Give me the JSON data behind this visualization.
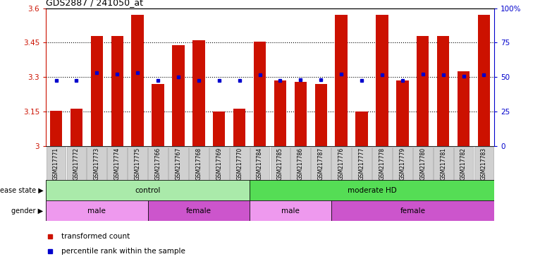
{
  "title": "GDS2887 / 241050_at",
  "samples": [
    "GSM217771",
    "GSM217772",
    "GSM217773",
    "GSM217774",
    "GSM217775",
    "GSM217766",
    "GSM217767",
    "GSM217768",
    "GSM217769",
    "GSM217770",
    "GSM217784",
    "GSM217785",
    "GSM217786",
    "GSM217787",
    "GSM217776",
    "GSM217777",
    "GSM217778",
    "GSM217779",
    "GSM217780",
    "GSM217781",
    "GSM217782",
    "GSM217783"
  ],
  "bar_values": [
    3.155,
    3.165,
    3.48,
    3.48,
    3.57,
    3.27,
    3.44,
    3.46,
    3.15,
    3.165,
    3.455,
    3.285,
    3.28,
    3.27,
    3.57,
    3.15,
    3.57,
    3.285,
    3.48,
    3.48,
    3.325,
    3.57
  ],
  "percentile_values": [
    3.285,
    3.285,
    3.32,
    3.315,
    3.32,
    3.285,
    3.3,
    3.285,
    3.285,
    3.285,
    3.31,
    3.285,
    3.29,
    3.29,
    3.315,
    3.285,
    3.31,
    3.285,
    3.315,
    3.31,
    3.305,
    3.31
  ],
  "ylim": [
    3.0,
    3.6
  ],
  "yticks": [
    3.0,
    3.15,
    3.3,
    3.45,
    3.6
  ],
  "ytick_labels": [
    "3",
    "3.15",
    "3.3",
    "3.45",
    "3.6"
  ],
  "right_yticks": [
    0,
    25,
    50,
    75,
    100
  ],
  "right_ytick_labels": [
    "0",
    "25",
    "50",
    "75",
    "100%"
  ],
  "bar_color": "#cc1100",
  "dot_color": "#0000cc",
  "disease_state_groups": [
    {
      "label": "control",
      "start": 0,
      "end": 9,
      "color": "#aaeaaa"
    },
    {
      "label": "moderate HD",
      "start": 10,
      "end": 21,
      "color": "#55dd55"
    }
  ],
  "gender_groups": [
    {
      "label": "male",
      "start": 0,
      "end": 4,
      "color": "#ee99ee"
    },
    {
      "label": "female",
      "start": 5,
      "end": 9,
      "color": "#cc55cc"
    },
    {
      "label": "male",
      "start": 10,
      "end": 13,
      "color": "#ee99ee"
    },
    {
      "label": "female",
      "start": 14,
      "end": 21,
      "color": "#cc55cc"
    }
  ],
  "legend_items": [
    {
      "label": "transformed count",
      "color": "#cc1100"
    },
    {
      "label": "percentile rank within the sample",
      "color": "#0000cc"
    }
  ],
  "bar_width": 0.6,
  "background_color": "#ffffff",
  "label_bg_color": "#d0d0d0",
  "label_border_color": "#999999",
  "gridline_color": "#000000",
  "spine_color_left": "#cc1100",
  "spine_color_right": "#0000cc"
}
